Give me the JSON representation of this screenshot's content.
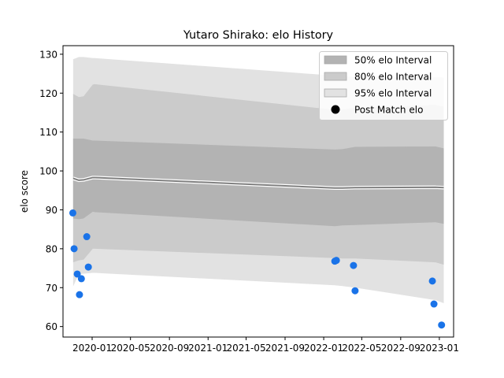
{
  "chart_data": {
    "type": "line",
    "title": "Yutaro Shirako: elo History",
    "xlabel": "",
    "ylabel": "elo score",
    "xlim": [
      "2019-10-01",
      "2023-02-15"
    ],
    "ylim": [
      57.3,
      132.2
    ],
    "y_ticks": [
      60,
      70,
      80,
      90,
      100,
      110,
      120,
      130
    ],
    "x_ticks": [
      {
        "date": "2020-01-01",
        "label": "2020-01"
      },
      {
        "date": "2020-05-01",
        "label": "2020-05"
      },
      {
        "date": "2020-09-01",
        "label": "2020-09"
      },
      {
        "date": "2021-01-01",
        "label": "2021-01"
      },
      {
        "date": "2021-05-01",
        "label": "2021-05"
      },
      {
        "date": "2021-09-01",
        "label": "2021-09"
      },
      {
        "date": "2022-01-01",
        "label": "2022-01"
      },
      {
        "date": "2022-05-01",
        "label": "2022-05"
      },
      {
        "date": "2022-09-01",
        "label": "2022-09"
      },
      {
        "date": "2023-01-01",
        "label": "2023-01"
      }
    ],
    "legend_position": "top-right",
    "legend": [
      {
        "key": "i50",
        "label": "50% elo Interval",
        "color": "#b3b3b3"
      },
      {
        "key": "i80",
        "label": "80% elo Interval",
        "color": "#cbcbcb"
      },
      {
        "key": "i95",
        "label": "95% elo Interval",
        "color": "#e2e2e2"
      },
      {
        "key": "post",
        "label": "Post Match elo",
        "color": "#000000"
      }
    ],
    "band_dates": [
      "2019-11-02",
      "2019-11-20",
      "2019-12-05",
      "2020-01-03",
      "2020-01-10",
      "2022-02-05",
      "2022-03-01",
      "2022-04-10",
      "2022-12-20",
      "2023-01-15"
    ],
    "mean": [
      98.1,
      97.6,
      97.7,
      98.3,
      98.3,
      95.6,
      95.6,
      95.7,
      95.8,
      95.7
    ],
    "i50_low": [
      87.8,
      87.6,
      87.8,
      89.5,
      89.4,
      85.8,
      86.0,
      86.1,
      86.8,
      86.4
    ],
    "i50_high": [
      108.3,
      108.3,
      108.3,
      107.8,
      107.8,
      105.5,
      105.6,
      106.2,
      106.3,
      105.8
    ],
    "i80_low": [
      76.5,
      77.0,
      77.2,
      80.0,
      80.0,
      77.6,
      77.5,
      77.5,
      76.5,
      75.9
    ],
    "i80_high": [
      119.8,
      119.0,
      119.2,
      122.2,
      122.3,
      115.7,
      115.8,
      116.2,
      117.0,
      116.5
    ],
    "i95_low": [
      70.3,
      73.5,
      73.6,
      73.8,
      73.8,
      70.6,
      70.4,
      70.0,
      66.8,
      66.0
    ],
    "i95_high": [
      128.7,
      129.3,
      129.3,
      129.0,
      129.0,
      124.5,
      124.3,
      124.2,
      124.1,
      124.0
    ],
    "post_match": [
      {
        "date": "2019-11-01",
        "elo": 89.2
      },
      {
        "date": "2019-11-05",
        "elo": 80.0
      },
      {
        "date": "2019-11-15",
        "elo": 73.5
      },
      {
        "date": "2019-11-22",
        "elo": 68.2
      },
      {
        "date": "2019-11-28",
        "elo": 72.3
      },
      {
        "date": "2019-12-15",
        "elo": 83.1
      },
      {
        "date": "2019-12-20",
        "elo": 75.3
      },
      {
        "date": "2022-02-05",
        "elo": 76.8
      },
      {
        "date": "2022-02-10",
        "elo": 77.0
      },
      {
        "date": "2022-04-05",
        "elo": 75.7
      },
      {
        "date": "2022-04-10",
        "elo": 69.2
      },
      {
        "date": "2022-12-10",
        "elo": 71.7
      },
      {
        "date": "2022-12-15",
        "elo": 65.8
      },
      {
        "date": "2023-01-08",
        "elo": 60.4
      }
    ]
  }
}
